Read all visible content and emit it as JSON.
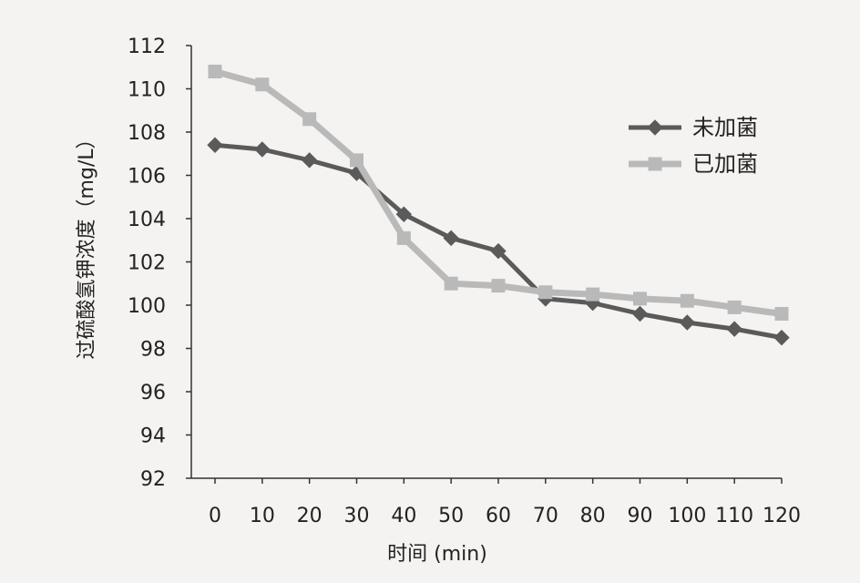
{
  "chart_data": {
    "type": "line",
    "title": "",
    "xlabel": "时间 (min)",
    "ylabel": "过硫酸氢钾浓度（mg/L）",
    "x": [
      0,
      10,
      20,
      30,
      40,
      50,
      60,
      70,
      80,
      90,
      100,
      110,
      120
    ],
    "xlim": [
      0,
      120
    ],
    "ylim": [
      92,
      112
    ],
    "yticks": [
      92,
      94,
      96,
      98,
      100,
      102,
      104,
      106,
      108,
      110,
      112
    ],
    "grid": false,
    "legend_position": "top-right",
    "series": [
      {
        "name": "未加菌",
        "color": "#5a5a5a",
        "marker": "diamond",
        "values": [
          107.4,
          107.2,
          106.7,
          106.1,
          104.2,
          103.1,
          102.5,
          100.3,
          100.1,
          99.6,
          99.2,
          98.9,
          98.5
        ]
      },
      {
        "name": "已加菌",
        "color": "#b9b9b9",
        "marker": "square",
        "values": [
          110.8,
          110.2,
          108.6,
          106.7,
          103.1,
          101.0,
          100.9,
          100.6,
          100.5,
          100.3,
          100.2,
          99.9,
          99.6
        ]
      }
    ]
  }
}
